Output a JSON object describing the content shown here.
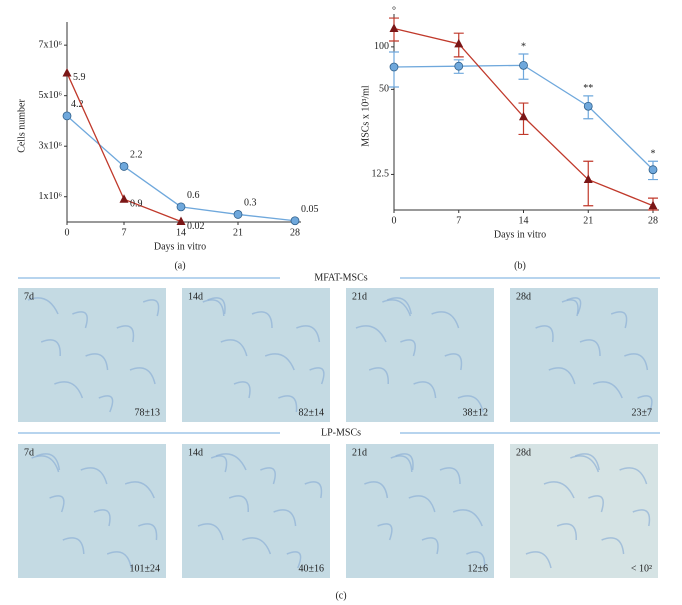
{
  "chart_data": [
    {
      "type": "line",
      "xlabel": "Days in vitro",
      "ylabel": "Cells number",
      "caption": "(a)",
      "x": [
        0,
        7,
        14,
        21,
        28
      ],
      "xlim": [
        0,
        28
      ],
      "xticks": [
        0,
        7,
        14,
        21,
        28
      ],
      "ylim": [
        0,
        7600000
      ],
      "yticks": [
        {
          "value": 1000000,
          "label": "1x10⁶"
        },
        {
          "value": 3000000,
          "label": "3x10⁶"
        },
        {
          "value": 5000000,
          "label": "5x10⁶"
        },
        {
          "value": 7000000,
          "label": "7x10⁶"
        }
      ],
      "log_scale": false,
      "series": [
        {
          "color": "#6fa8dc",
          "marker": "circle",
          "values": [
            4200000,
            2200000,
            600000,
            300000,
            50000
          ],
          "value_labels": [
            "4.2",
            "2.2",
            "0.6",
            "0.3",
            "0.05"
          ]
        },
        {
          "color": "#c0392b",
          "marker": "triangle",
          "values": [
            5900000,
            900000,
            20000,
            null,
            null
          ],
          "value_labels": [
            "5.9",
            "0.9",
            "0.02",
            null,
            null
          ]
        }
      ]
    },
    {
      "type": "line",
      "xlabel": "Days in vitro",
      "ylabel": "MSCs x 10³/ml",
      "caption": "(b)",
      "x": [
        0,
        7,
        14,
        21,
        28
      ],
      "xlim": [
        0,
        28
      ],
      "xticks": [
        0,
        7,
        14,
        21,
        28
      ],
      "ylim": [
        7,
        150
      ],
      "yticks": [
        12.5,
        50,
        100
      ],
      "log_scale": true,
      "series": [
        {
          "color": "#6fa8dc",
          "marker": "circle",
          "values": [
            72,
            73,
            74,
            38,
            13.5
          ],
          "errors": [
            20,
            8,
            15,
            7,
            2
          ],
          "annotations": [
            null,
            null,
            "*",
            "**",
            "*"
          ]
        },
        {
          "color": "#c0392b",
          "marker": "triangle",
          "values": [
            135,
            105,
            32,
            11.5,
            7.5
          ],
          "errors": [
            25,
            20,
            8,
            4,
            1
          ],
          "annotations": [
            "°",
            null,
            null,
            null,
            null
          ]
        }
      ]
    }
  ],
  "panels": [
    {
      "title": "MFAT-MSCs",
      "items": [
        {
          "day": "7d",
          "count": "78±13"
        },
        {
          "day": "14d",
          "count": "82±14"
        },
        {
          "day": "21d",
          "count": "38±12"
        },
        {
          "day": "28d",
          "count": "23±7"
        }
      ]
    },
    {
      "title": "LP-MSCs",
      "items": [
        {
          "day": "7d",
          "count": "101±24"
        },
        {
          "day": "14d",
          "count": "40±16"
        },
        {
          "day": "21d",
          "count": "12±6"
        },
        {
          "day": "28d",
          "count": "< 10²"
        }
      ]
    }
  ],
  "caption": "(c)"
}
